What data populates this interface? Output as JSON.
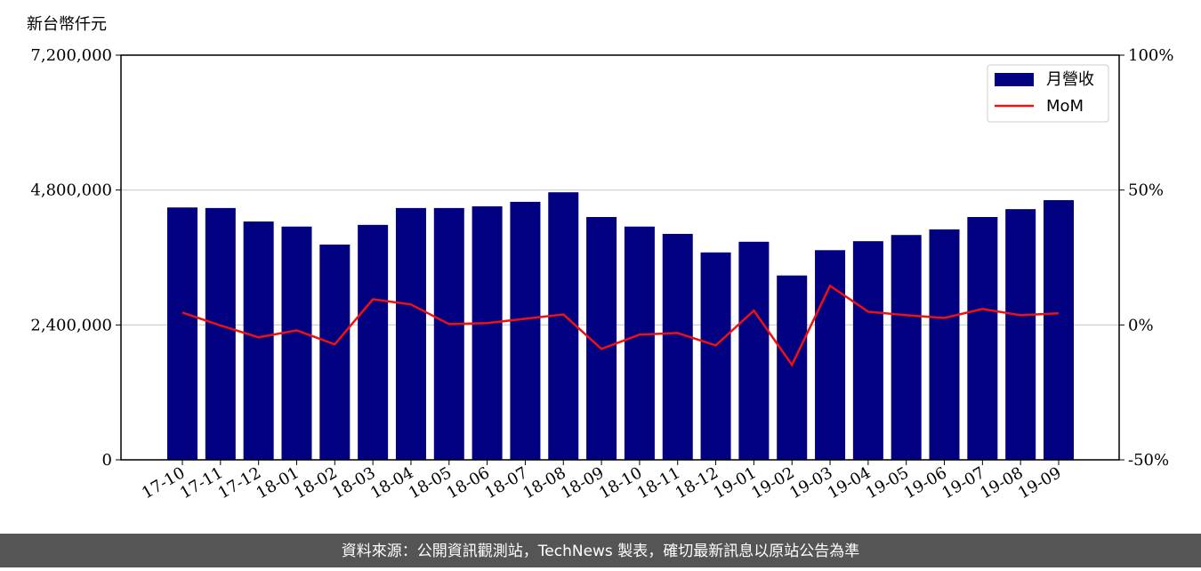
{
  "chart_data": {
    "type": "bar_line",
    "y_label": "新台幣仟元",
    "source": "資料來源：公開資訊觀測站，TechNews 製表，確切最新訊息以原站公告為準",
    "categories": [
      "17-10",
      "17-11",
      "17-12",
      "18-01",
      "18-02",
      "18-03",
      "18-04",
      "18-05",
      "18-06",
      "18-07",
      "18-08",
      "18-09",
      "18-10",
      "18-11",
      "18-12",
      "19-01",
      "19-02",
      "19-03",
      "19-04",
      "19-05",
      "19-06",
      "19-07",
      "19-08",
      "19-09"
    ],
    "series": [
      {
        "name": "月營收",
        "color": "#000080",
        "type": "bar",
        "values": [
          4490000,
          4480000,
          4240000,
          4150000,
          3830000,
          4180000,
          4480000,
          4480000,
          4510000,
          4590000,
          4760000,
          4320000,
          4150000,
          4020000,
          3690000,
          3880000,
          3280000,
          3730000,
          3890000,
          4000000,
          4100000,
          4320000,
          4460000,
          4620000
        ]
      },
      {
        "name": "MoM",
        "color": "#ee1111",
        "type": "line",
        "axis": "y2",
        "values": [
          4.6,
          -0.2,
          -4.6,
          -2.0,
          -7.2,
          9.5,
          7.6,
          0.3,
          0.7,
          2.3,
          3.9,
          -8.9,
          -3.6,
          -3.0,
          -7.6,
          5.3,
          -14.8,
          14.5,
          4.9,
          3.6,
          2.6,
          5.9,
          3.6,
          4.3
        ]
      }
    ],
    "ylim": [
      0,
      7200000
    ],
    "yticks": [
      {
        "value": 0,
        "label": "0"
      },
      {
        "value": 2400000,
        "label": "2,400,000"
      },
      {
        "value": 4800000,
        "label": "4,800,000"
      },
      {
        "value": 7200000,
        "label": "7,200,000"
      }
    ],
    "y2lim": [
      -50,
      100
    ],
    "y2ticks": [
      {
        "value": -50,
        "label": "-50%"
      },
      {
        "value": 0,
        "label": "0%"
      },
      {
        "value": 50,
        "label": "50%"
      },
      {
        "value": 100,
        "label": "100%"
      }
    ],
    "grid": true,
    "legend": "upper right"
  }
}
